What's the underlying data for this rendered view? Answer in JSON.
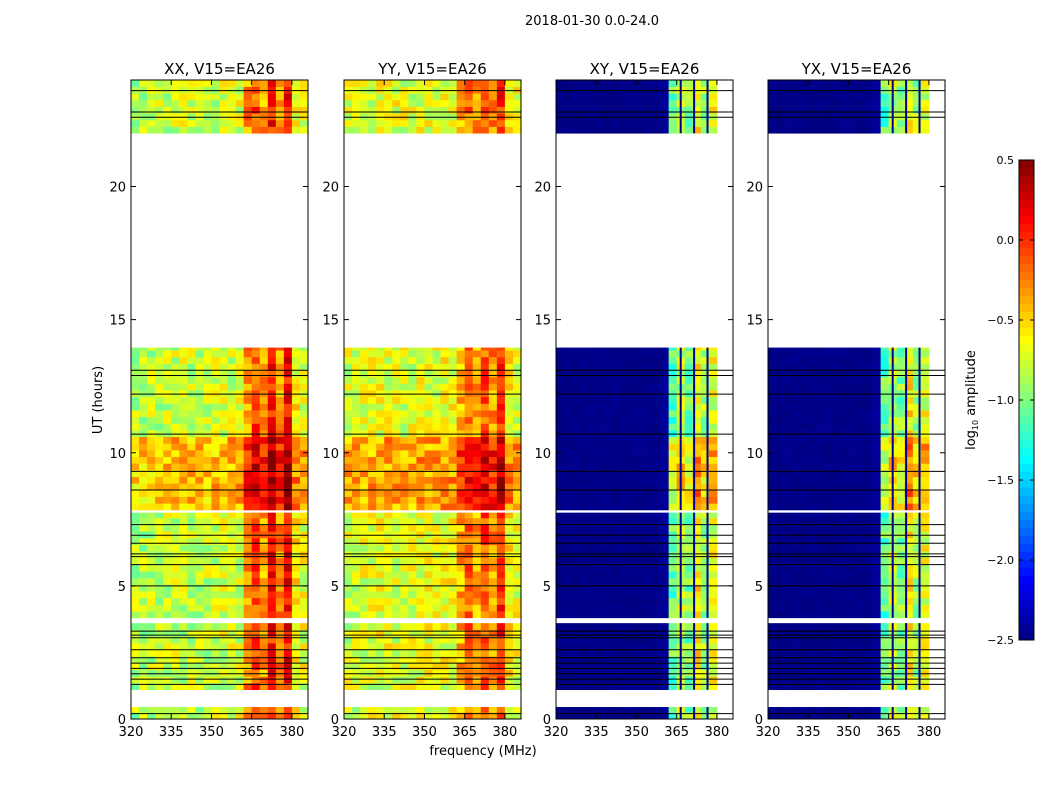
{
  "chart_data": {
    "type": "heatmap",
    "title": "2018-01-30 0.0-24.0",
    "xlabel": "frequency (MHz)",
    "ylabel": "UT (hours)",
    "xlim": [
      320,
      386
    ],
    "ylim": [
      0,
      24
    ],
    "xticks": [
      "320",
      "335",
      "350",
      "365",
      "380"
    ],
    "yticks": [
      "0",
      "5",
      "10",
      "15",
      "20"
    ],
    "colorbar": {
      "label": "log10 amplitude",
      "label_main": "log",
      "label_sub": "10",
      "label_rest": " amplitude",
      "range": [
        -2.5,
        0.5
      ],
      "ticks": [
        "0.5",
        "0.0",
        "−0.5",
        "−1.0",
        "−1.5",
        "−2.0",
        "−2.5"
      ],
      "colormap": "jet"
    },
    "freq_columns_mhz": [
      320,
      323,
      326,
      329,
      332,
      335,
      338,
      341,
      344,
      347,
      350,
      353,
      356,
      359,
      362,
      365,
      368,
      371,
      374,
      377,
      380,
      383
    ],
    "time_segments_hours": [
      [
        0.0,
        0.45
      ],
      [
        1.1,
        3.6
      ],
      [
        3.8,
        7.75
      ],
      [
        7.85,
        13.95
      ],
      [
        22.0,
        24.0
      ]
    ],
    "flag_lines_hours": [
      0.2,
      1.3,
      1.5,
      1.7,
      1.9,
      2.1,
      2.3,
      2.6,
      3.05,
      3.15,
      3.3,
      5.0,
      5.8,
      6.1,
      6.2,
      6.6,
      6.9,
      7.3,
      8.6,
      9.3,
      10.7,
      12.2,
      12.9,
      13.1,
      22.6,
      22.8,
      23.6
    ],
    "panels": [
      {
        "title": "XX, V15=EA26",
        "profile": [
          -0.85,
          -0.85,
          -0.82,
          -0.8,
          -0.8,
          -0.78,
          -0.78,
          -0.8,
          -0.82,
          -0.8,
          -0.78,
          -0.76,
          -0.75,
          -0.72,
          -0.3,
          -0.1,
          -0.35,
          0.05,
          -0.3,
          0.1,
          -0.6,
          -0.7
        ]
      },
      {
        "title": "YY, V15=EA26",
        "profile": [
          -0.75,
          -0.75,
          -0.72,
          -0.72,
          -0.7,
          -0.7,
          -0.7,
          -0.72,
          -0.72,
          -0.7,
          -0.7,
          -0.7,
          -0.68,
          -0.66,
          -0.4,
          -0.2,
          -0.35,
          -0.1,
          -0.3,
          0.0,
          -0.6,
          -0.7
        ]
      },
      {
        "title": "XY, V15=EA26",
        "profile": [
          -2.5,
          -2.5,
          -2.5,
          -2.5,
          -2.5,
          -2.5,
          -2.5,
          -2.5,
          -2.5,
          -2.5,
          -2.5,
          -2.5,
          -2.5,
          -2.45,
          -1.1,
          -0.8,
          -1.0,
          -0.6,
          -0.9,
          -0.7,
          null,
          null
        ]
      },
      {
        "title": "YX, V15=EA26",
        "profile": [
          -2.5,
          -2.5,
          -2.5,
          -2.5,
          -2.5,
          -2.5,
          -2.5,
          -2.5,
          -2.5,
          -2.5,
          -2.5,
          -2.5,
          -2.5,
          -2.45,
          -1.1,
          -0.8,
          -1.0,
          -0.6,
          -0.9,
          -0.7,
          null,
          null
        ]
      }
    ]
  }
}
